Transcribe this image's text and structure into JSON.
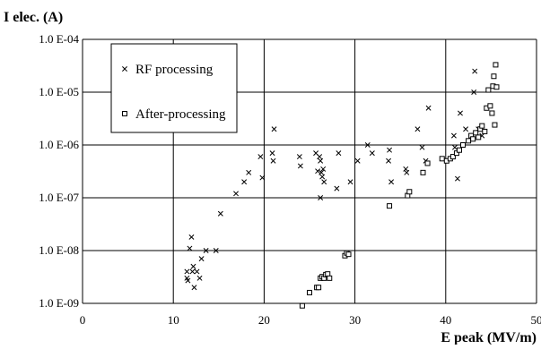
{
  "chart_data": {
    "type": "scatter",
    "xlabel": "E peak (MV/m)",
    "ylabel": "I elec. (A)",
    "xlim": [
      0,
      50
    ],
    "ylim": [
      1e-09,
      0.0001
    ],
    "y_scale": "log",
    "grid": true,
    "legend_position": "top-left",
    "x_ticks": [
      "0",
      "10",
      "20",
      "30",
      "40",
      "50"
    ],
    "y_ticks": [
      "1.0 E-09",
      "1.0 E-08",
      "1.0 E-07",
      "1.0 E-06",
      "1.0 E-05",
      "1.0 E-04"
    ],
    "series": [
      {
        "name": "RF processing",
        "marker": "x",
        "points": [
          [
            11.5,
            3e-09
          ],
          [
            11.5,
            4e-09
          ],
          [
            11.6,
            2.7e-09
          ],
          [
            11.8,
            1.1e-08
          ],
          [
            12.0,
            1.8e-08
          ],
          [
            12.1,
            4e-09
          ],
          [
            12.2,
            5e-09
          ],
          [
            12.3,
            2e-09
          ],
          [
            12.6,
            4e-09
          ],
          [
            12.9,
            3e-09
          ],
          [
            13.1,
            7e-09
          ],
          [
            13.6,
            1e-08
          ],
          [
            14.7,
            1e-08
          ],
          [
            15.2,
            5e-08
          ],
          [
            16.9,
            1.2e-07
          ],
          [
            17.8,
            2e-07
          ],
          [
            18.3,
            3e-07
          ],
          [
            19.6,
            6e-07
          ],
          [
            19.8,
            2.4e-07
          ],
          [
            20.9,
            7e-07
          ],
          [
            21.0,
            5e-07
          ],
          [
            21.1,
            2e-06
          ],
          [
            23.9,
            6e-07
          ],
          [
            24.0,
            4e-07
          ],
          [
            25.7,
            7e-07
          ],
          [
            25.9,
            3.2e-07
          ],
          [
            26.1,
            6e-07
          ],
          [
            26.2,
            5e-07
          ],
          [
            26.3,
            3e-07
          ],
          [
            26.4,
            2.5e-07
          ],
          [
            26.5,
            3.5e-07
          ],
          [
            26.6,
            2e-07
          ],
          [
            26.2,
            1e-07
          ],
          [
            28.0,
            1.5e-07
          ],
          [
            28.2,
            7e-07
          ],
          [
            29.5,
            2e-07
          ],
          [
            30.3,
            5e-07
          ],
          [
            31.4,
            1e-06
          ],
          [
            31.9,
            7e-07
          ],
          [
            33.7,
            5e-07
          ],
          [
            33.8,
            8e-07
          ],
          [
            34.0,
            2e-07
          ],
          [
            35.6,
            3.5e-07
          ],
          [
            35.7,
            3e-07
          ],
          [
            36.9,
            2e-06
          ],
          [
            37.4,
            9e-07
          ],
          [
            37.8,
            5e-07
          ],
          [
            38.1,
            5e-06
          ],
          [
            40.9,
            1.5e-06
          ],
          [
            41.0,
            9e-07
          ],
          [
            41.3,
            2.3e-07
          ],
          [
            41.6,
            4e-06
          ],
          [
            42.2,
            2e-06
          ],
          [
            43.1,
            1e-05
          ],
          [
            43.2,
            2.5e-05
          ],
          [
            43.6,
            2e-06
          ],
          [
            44.0,
            1.5e-06
          ]
        ]
      },
      {
        "name": "After-processing",
        "marker": "square",
        "points": [
          [
            24.2,
            9e-10
          ],
          [
            25.0,
            1.6e-09
          ],
          [
            25.8,
            2e-09
          ],
          [
            26.0,
            2e-09
          ],
          [
            26.2,
            3e-09
          ],
          [
            26.4,
            3.2e-09
          ],
          [
            26.6,
            3e-09
          ],
          [
            26.8,
            3.5e-09
          ],
          [
            27.0,
            3.6e-09
          ],
          [
            27.2,
            3e-09
          ],
          [
            28.9,
            8e-09
          ],
          [
            29.1,
            9e-09
          ],
          [
            29.3,
            8.5e-09
          ],
          [
            33.8,
            7e-08
          ],
          [
            35.8,
            1.1e-07
          ],
          [
            36.0,
            1.3e-07
          ],
          [
            37.5,
            3e-07
          ],
          [
            38.0,
            4.5e-07
          ],
          [
            39.6,
            5.5e-07
          ],
          [
            40.1,
            5e-07
          ],
          [
            40.5,
            5.5e-07
          ],
          [
            40.8,
            6e-07
          ],
          [
            41.2,
            7e-07
          ],
          [
            41.5,
            8e-07
          ],
          [
            41.9,
            1e-06
          ],
          [
            42.5,
            1.2e-06
          ],
          [
            42.8,
            1.5e-06
          ],
          [
            43.0,
            1.3e-06
          ],
          [
            43.3,
            1.7e-06
          ],
          [
            43.6,
            1.4e-06
          ],
          [
            43.8,
            2e-06
          ],
          [
            44.0,
            2.3e-06
          ],
          [
            44.3,
            1.8e-06
          ],
          [
            44.5,
            5e-06
          ],
          [
            44.7,
            1.1e-05
          ],
          [
            44.9,
            5.5e-06
          ],
          [
            45.1,
            4e-06
          ],
          [
            45.2,
            1.3e-05
          ],
          [
            45.3,
            2e-05
          ],
          [
            45.5,
            3.3e-05
          ],
          [
            45.4,
            2.4e-06
          ],
          [
            45.6,
            1.25e-05
          ]
        ]
      }
    ]
  }
}
